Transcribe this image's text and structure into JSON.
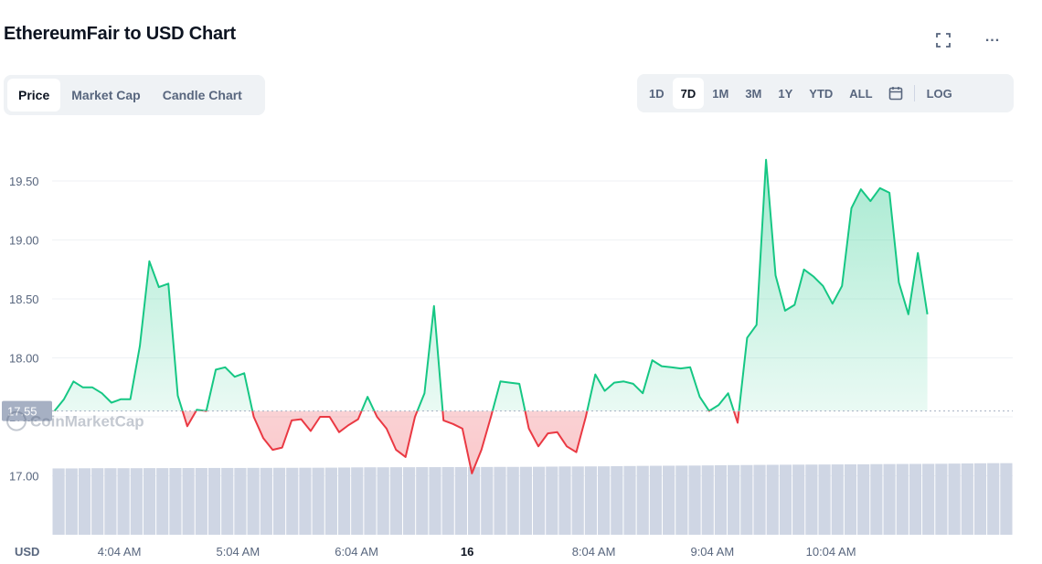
{
  "header": {
    "title": "EthereumFair to USD Chart",
    "fullscreen_icon": "fullscreen-icon",
    "more_icon": "more-icon",
    "more_label": "..."
  },
  "tabs": [
    {
      "label": "Price",
      "active": true
    },
    {
      "label": "Market Cap",
      "active": false
    },
    {
      "label": "Candle Chart",
      "active": false
    }
  ],
  "ranges": [
    {
      "label": "1D",
      "active": false
    },
    {
      "label": "7D",
      "active": true
    },
    {
      "label": "1M",
      "active": false
    },
    {
      "label": "3M",
      "active": false
    },
    {
      "label": "1Y",
      "active": false
    },
    {
      "label": "YTD",
      "active": false
    },
    {
      "label": "ALL",
      "active": false
    }
  ],
  "calendar_icon": "calendar-icon",
  "log_label": "LOG",
  "watermark": "CoinMarketCap",
  "colors": {
    "up": "#16c784",
    "down": "#ea3943",
    "volume": "#cfd6e4",
    "grid": "#eff2f5",
    "axis_text": "#58667e"
  },
  "chart_data": {
    "type": "line",
    "currency_label": "USD",
    "baseline_label": "17.55",
    "baseline": 17.55,
    "ylim": [
      16.5,
      19.95
    ],
    "xlim": [
      3.5,
      11.6
    ],
    "yticks": [
      {
        "value": 17.0,
        "label": "17.00"
      },
      {
        "value": 17.5,
        "label": "17.50"
      },
      {
        "value": 18.0,
        "label": "18.00"
      },
      {
        "value": 18.5,
        "label": "18.50"
      },
      {
        "value": 19.0,
        "label": "19.00"
      },
      {
        "value": 19.5,
        "label": "19.50"
      }
    ],
    "xticks": [
      {
        "value": 4.067,
        "label": "4:04 AM"
      },
      {
        "value": 5.067,
        "label": "5:04 AM"
      },
      {
        "value": 6.067,
        "label": "6:04 AM"
      },
      {
        "value": 7.0,
        "label": "16",
        "bold": true
      },
      {
        "value": 8.067,
        "label": "8:04 AM"
      },
      {
        "value": 9.067,
        "label": "9:04 AM"
      },
      {
        "value": 10.067,
        "label": "10:04 AM"
      }
    ],
    "x_units": "hours",
    "price": [
      [
        3.52,
        17.55
      ],
      [
        3.6,
        17.65
      ],
      [
        3.68,
        17.8
      ],
      [
        3.76,
        17.75
      ],
      [
        3.84,
        17.75
      ],
      [
        3.92,
        17.7
      ],
      [
        4.0,
        17.62
      ],
      [
        4.08,
        17.65
      ],
      [
        4.16,
        17.65
      ],
      [
        4.24,
        18.1
      ],
      [
        4.32,
        18.82
      ],
      [
        4.4,
        18.6
      ],
      [
        4.48,
        18.63
      ],
      [
        4.56,
        17.68
      ],
      [
        4.64,
        17.42
      ],
      [
        4.72,
        17.56
      ],
      [
        4.8,
        17.55
      ],
      [
        4.88,
        17.9
      ],
      [
        4.96,
        17.92
      ],
      [
        5.04,
        17.84
      ],
      [
        5.12,
        17.87
      ],
      [
        5.2,
        17.5
      ],
      [
        5.28,
        17.32
      ],
      [
        5.36,
        17.22
      ],
      [
        5.44,
        17.24
      ],
      [
        5.52,
        17.47
      ],
      [
        5.6,
        17.48
      ],
      [
        5.68,
        17.38
      ],
      [
        5.76,
        17.5
      ],
      [
        5.84,
        17.5
      ],
      [
        5.92,
        17.37
      ],
      [
        6.0,
        17.43
      ],
      [
        6.08,
        17.48
      ],
      [
        6.16,
        17.67
      ],
      [
        6.24,
        17.5
      ],
      [
        6.32,
        17.4
      ],
      [
        6.4,
        17.22
      ],
      [
        6.48,
        17.16
      ],
      [
        6.56,
        17.5
      ],
      [
        6.64,
        17.7
      ],
      [
        6.72,
        18.44
      ],
      [
        6.8,
        17.47
      ],
      [
        6.88,
        17.44
      ],
      [
        6.96,
        17.4
      ],
      [
        7.04,
        17.02
      ],
      [
        7.12,
        17.22
      ],
      [
        7.2,
        17.5
      ],
      [
        7.28,
        17.8
      ],
      [
        7.36,
        17.79
      ],
      [
        7.44,
        17.78
      ],
      [
        7.52,
        17.4
      ],
      [
        7.6,
        17.25
      ],
      [
        7.68,
        17.36
      ],
      [
        7.76,
        17.37
      ],
      [
        7.84,
        17.25
      ],
      [
        7.92,
        17.2
      ],
      [
        8.0,
        17.5
      ],
      [
        8.08,
        17.86
      ],
      [
        8.16,
        17.72
      ],
      [
        8.24,
        17.79
      ],
      [
        8.32,
        17.8
      ],
      [
        8.4,
        17.78
      ],
      [
        8.48,
        17.7
      ],
      [
        8.56,
        17.98
      ],
      [
        8.64,
        17.93
      ],
      [
        8.72,
        17.92
      ],
      [
        8.8,
        17.91
      ],
      [
        8.88,
        17.92
      ],
      [
        8.96,
        17.67
      ],
      [
        9.04,
        17.55
      ],
      [
        9.12,
        17.6
      ],
      [
        9.2,
        17.7
      ],
      [
        9.28,
        17.45
      ],
      [
        9.36,
        18.17
      ],
      [
        9.44,
        18.28
      ],
      [
        9.52,
        19.68
      ],
      [
        9.6,
        18.7
      ],
      [
        9.68,
        18.4
      ],
      [
        9.76,
        18.45
      ],
      [
        9.84,
        18.75
      ],
      [
        9.92,
        18.69
      ],
      [
        10.0,
        18.61
      ],
      [
        10.08,
        18.46
      ],
      [
        10.16,
        18.61
      ],
      [
        10.24,
        19.27
      ],
      [
        10.32,
        19.43
      ],
      [
        10.4,
        19.33
      ],
      [
        10.48,
        19.44
      ],
      [
        10.56,
        19.4
      ],
      [
        10.64,
        18.64
      ],
      [
        10.72,
        18.37
      ],
      [
        10.8,
        18.89
      ],
      [
        10.88,
        18.37
      ]
    ],
    "volume": [
      0.88,
      0.88,
      0.882,
      0.883,
      0.883,
      0.883,
      0.883,
      0.884,
      0.884,
      0.885,
      0.885,
      0.885,
      0.886,
      0.886,
      0.886,
      0.887,
      0.887,
      0.888,
      0.888,
      0.889,
      0.889,
      0.89,
      0.892,
      0.894,
      0.895,
      0.895,
      0.896,
      0.896,
      0.897,
      0.897,
      0.898,
      0.898,
      0.899,
      0.899,
      0.9,
      0.9,
      0.901,
      0.902,
      0.904,
      0.906,
      0.906,
      0.907,
      0.908,
      0.91,
      0.912,
      0.914,
      0.915,
      0.916,
      0.917,
      0.918,
      0.92,
      0.922,
      0.924,
      0.925,
      0.927,
      0.928,
      0.929,
      0.93,
      0.931,
      0.932,
      0.933,
      0.934,
      0.935,
      0.937,
      0.938,
      0.939,
      0.94,
      0.941,
      0.942,
      0.944,
      0.946,
      0.948,
      0.95,
      0.95
    ]
  }
}
